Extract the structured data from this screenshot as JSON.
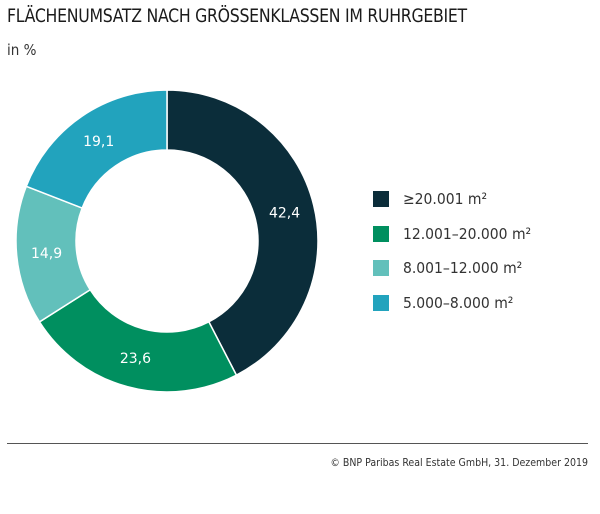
{
  "chart_data": {
    "type": "pie",
    "variant": "donut",
    "title": "FLÄCHENUMSATZ NACH GRÖSSENKLASSEN IM RUHRGEBIET",
    "subtitle": "in %",
    "categories": [
      "≥20.001 m²",
      "12.001–20.000 m²",
      "8.001–12.000 m²",
      "5.000–8.000 m²"
    ],
    "values": [
      42.4,
      23.6,
      14.9,
      19.1
    ],
    "data_labels": [
      "42,4",
      "23,6",
      "14,9",
      "19,1"
    ],
    "colors": [
      "#0b2d3a",
      "#008f5f",
      "#62c0bb",
      "#22a3bd"
    ],
    "legend_position": "right"
  },
  "source": "© BNP Paribas Real Estate GmbH, 31. Dezember 2019"
}
